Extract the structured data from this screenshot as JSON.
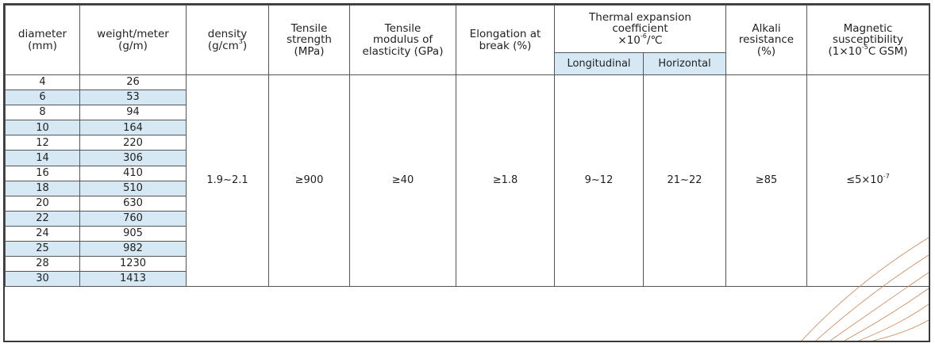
{
  "headers": {
    "diameter": [
      "diameter",
      "(mm)"
    ],
    "weight": [
      "weight/meter",
      "(g/m)"
    ],
    "density": [
      "density",
      "(g/cm",
      "3",
      ")"
    ],
    "tensile_strength": [
      "Tensile",
      "strength",
      "(MPa)"
    ],
    "tensile_modulus": [
      "Tensile",
      "modulus of",
      "elasticity (GPa)"
    ],
    "elongation": [
      "Elongation at",
      "break (%)"
    ],
    "thermal": [
      "Thermal expansion",
      "coefficient",
      "×10",
      "-6",
      "/℃"
    ],
    "thermal_long": "Longitudinal",
    "thermal_horiz": "Horizontal",
    "alkali": [
      "Alkali",
      "resistance",
      "(%)"
    ],
    "magnetic": [
      "Magnetic",
      "susceptibility",
      "(1×10",
      "-5",
      "C GSM)"
    ]
  },
  "rows": [
    {
      "d": "4",
      "w": "26"
    },
    {
      "d": "6",
      "w": "53"
    },
    {
      "d": "8",
      "w": "94"
    },
    {
      "d": "10",
      "w": "164"
    },
    {
      "d": "12",
      "w": "220"
    },
    {
      "d": "14",
      "w": "306"
    },
    {
      "d": "16",
      "w": "410"
    },
    {
      "d": "18",
      "w": "510"
    },
    {
      "d": "20",
      "w": "630"
    },
    {
      "d": "22",
      "w": "760"
    },
    {
      "d": "24",
      "w": "905"
    },
    {
      "d": "25",
      "w": "982"
    },
    {
      "d": "28",
      "w": "1230"
    },
    {
      "d": "30",
      "w": "1413"
    }
  ],
  "values": {
    "density": "1.9~2.1",
    "tensile_strength": "≥900",
    "tensile_modulus": "≥40",
    "elongation": "≥1.8",
    "thermal_long": "9~12",
    "thermal_horiz": "21~22",
    "alkali": "≥85",
    "magnetic_base": "≤5×10",
    "magnetic_exp": "-7"
  },
  "colors": {
    "shade": "#d5e8f4",
    "border": "#555555",
    "deco": "#c9875a"
  }
}
